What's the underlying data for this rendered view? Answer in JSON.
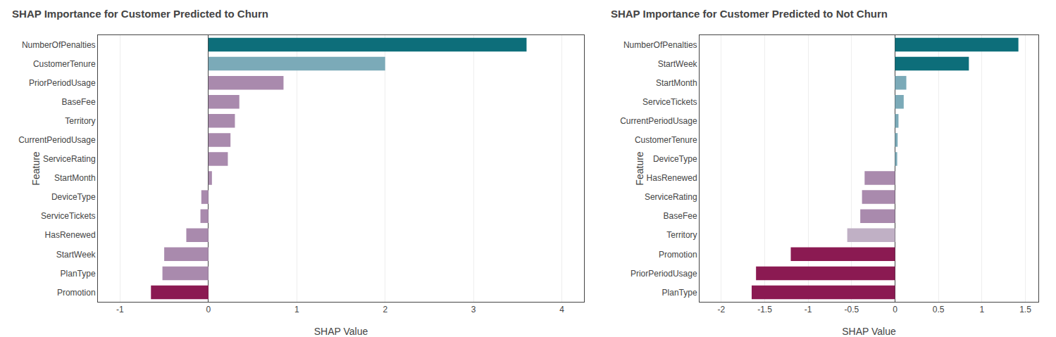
{
  "chart_data": [
    {
      "type": "bar",
      "orientation": "horizontal",
      "title": "SHAP Importance for Customer Predicted to Churn",
      "categories": [
        "NumberOfPenalties",
        "CustomerTenure",
        "PriorPeriodUsage",
        "BaseFee",
        "Territory",
        "CurrentPeriodUsage",
        "ServiceRating",
        "StartMonth",
        "DeviceType",
        "ServiceTickets",
        "HasRenewed",
        "StartWeek",
        "PlanType",
        "Promotion"
      ],
      "values": [
        3.6,
        2.0,
        0.85,
        0.35,
        0.3,
        0.25,
        0.22,
        0.04,
        -0.08,
        -0.09,
        -0.25,
        -0.5,
        -0.52,
        -0.65
      ],
      "colors": [
        "#0d6e7a",
        "#7baab8",
        "#a98aad",
        "#a98aad",
        "#a98aad",
        "#a98aad",
        "#a98aad",
        "#a98aad",
        "#a98aad",
        "#a98aad",
        "#a98aad",
        "#a98aad",
        "#a98aad",
        "#8b1a52"
      ],
      "xlabel": "SHAP Value",
      "ylabel": "Feature",
      "xlim": [
        -1.25,
        4.25
      ],
      "xticks": [
        -1,
        0,
        1,
        2,
        3,
        4
      ],
      "grid": true
    },
    {
      "type": "bar",
      "orientation": "horizontal",
      "title": "SHAP Importance for Customer Predicted to Not Churn",
      "categories": [
        "NumberOfPenalties",
        "StartWeek",
        "StartMonth",
        "ServiceTickets",
        "CurrentPeriodUsage",
        "CustomerTenure",
        "DeviceType",
        "HasRenewed",
        "ServiceRating",
        "BaseFee",
        "Territory",
        "Promotion",
        "PriorPeriodUsage",
        "PlanType"
      ],
      "values": [
        1.42,
        0.85,
        0.13,
        0.1,
        0.04,
        0.03,
        0.025,
        -0.35,
        -0.38,
        -0.4,
        -0.55,
        -1.2,
        -1.6,
        -1.65
      ],
      "colors": [
        "#0d6e7a",
        "#0d6e7a",
        "#7baab8",
        "#7baab8",
        "#7baab8",
        "#7baab8",
        "#7baab8",
        "#a98aad",
        "#a98aad",
        "#a98aad",
        "#c0b0c5",
        "#8b1a52",
        "#8b1a52",
        "#8b1a52"
      ],
      "xlabel": "SHAP Value",
      "ylabel": "Feature",
      "xlim": [
        -2.25,
        1.65
      ],
      "xticks": [
        -2,
        -1.5,
        -1,
        -0.5,
        0,
        0.5,
        1,
        1.5
      ],
      "grid": true
    }
  ]
}
